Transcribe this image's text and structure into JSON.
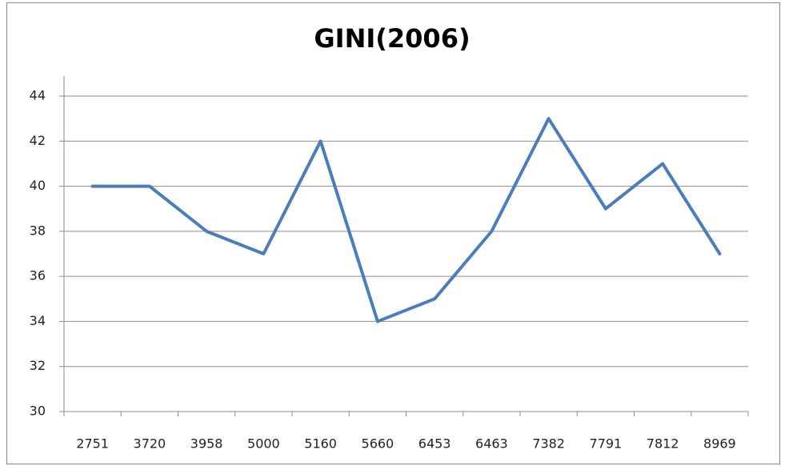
{
  "chart_data": {
    "type": "line",
    "title": "GINI(2006)",
    "categories": [
      "2751",
      "3720",
      "3958",
      "5000",
      "5160",
      "5660",
      "6453",
      "6463",
      "7382",
      "7791",
      "7812",
      "8969"
    ],
    "series": [
      {
        "name": "GINI(2006)",
        "color": "#4a7ebb",
        "values": [
          40,
          40,
          38,
          37,
          42,
          34,
          35,
          38,
          43,
          39,
          41,
          37
        ]
      }
    ],
    "ylim": [
      30,
      44
    ],
    "yticks": [
      30,
      32,
      34,
      36,
      38,
      40,
      42,
      44
    ],
    "grid": true,
    "legend": false
  }
}
